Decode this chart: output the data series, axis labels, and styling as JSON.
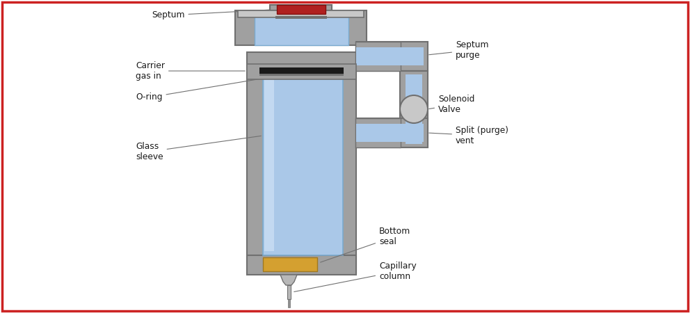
{
  "bg_color": "#ffffff",
  "border_color": "#cc2222",
  "border_linewidth": 2.5,
  "gray_body": "#a0a0a0",
  "gray_dark": "#707070",
  "gray_light": "#c8c8c8",
  "blue_glass": "#aac8e8",
  "blue_glass_light": "#cce0f5",
  "blue_glass_dark": "#7aaace",
  "red_septum": "#b02020",
  "black_oring": "#1a1a1a",
  "gold_seal": "#d4a030",
  "silver_col": "#b8b8b8",
  "text_color": "#1a1a1a",
  "line_color": "#707070",
  "label_septum": "Septum",
  "label_carrier": "Carrier\ngas in",
  "label_oring": "O-ring",
  "label_glass": "Glass\nsleeve",
  "label_purge": "Septum\npurge",
  "label_split": "Split (purge)\nvent",
  "label_solenoid": "Solenoid\nValve",
  "label_bottom": "Bottom\nseal",
  "label_capillary": "Capillary\ncolumn"
}
